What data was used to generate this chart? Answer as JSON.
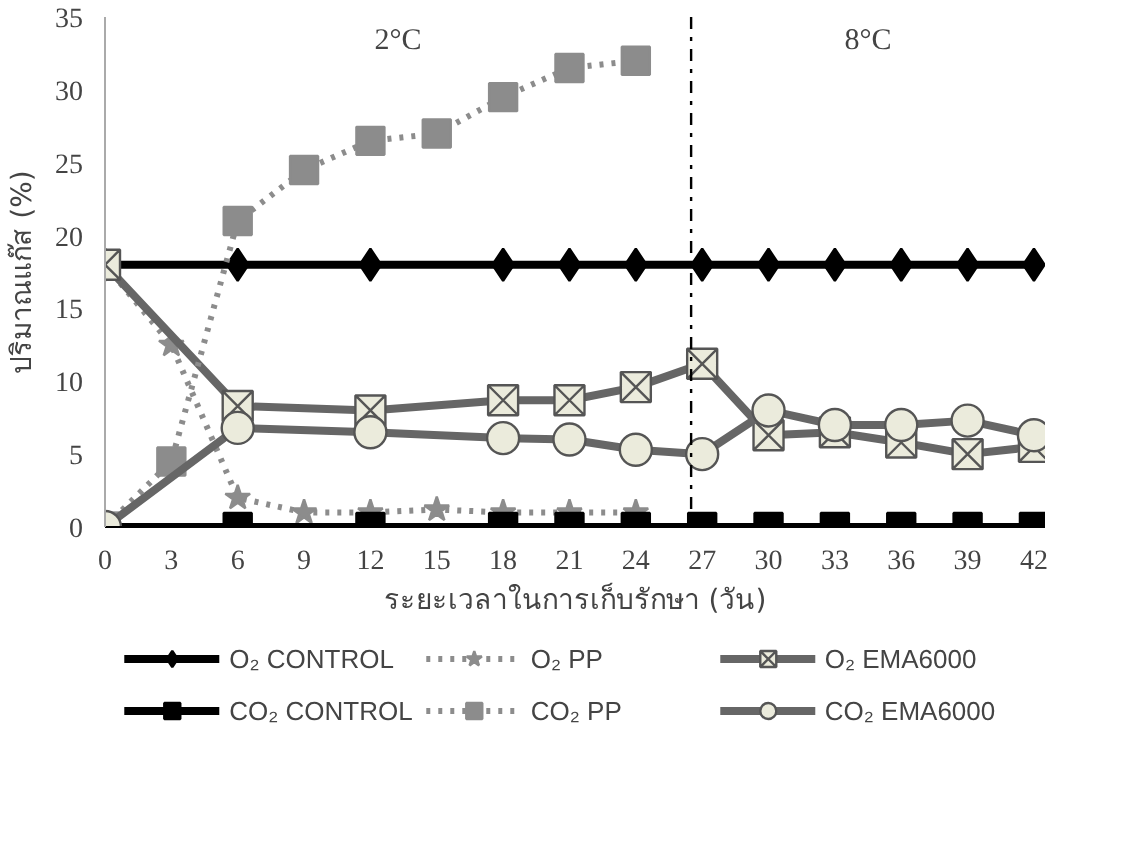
{
  "chart_data": {
    "type": "line",
    "xlabel": "ระยะเวลาในการเก็บรักษา (วัน)",
    "ylabel": "ปริมาณแก๊ส (%)",
    "xlim": [
      0,
      42.5
    ],
    "xticks": [
      0,
      3,
      6,
      9,
      12,
      15,
      18,
      21,
      24,
      27,
      30,
      33,
      36,
      39,
      42
    ],
    "ylim": [
      0,
      35
    ],
    "yticks": [
      0,
      5,
      10,
      15,
      20,
      25,
      30,
      35
    ],
    "grid": false,
    "legend": "bottom",
    "ref_lines": [
      {
        "axis": "x",
        "value": 26.5,
        "line_style": "dashdot",
        "color": "#000000"
      }
    ],
    "annotations": [
      "2°C",
      "8°C"
    ],
    "series": [
      {
        "name": "O₂ CONTROL",
        "color": "#000000",
        "marker": "diamond",
        "line_style": "solid",
        "x": [
          0,
          6,
          12,
          18,
          21,
          24,
          27,
          30,
          33,
          36,
          39,
          42
        ],
        "values": [
          18,
          18,
          18,
          18,
          18,
          18,
          18,
          18,
          18,
          18,
          18,
          18
        ]
      },
      {
        "name": "O₂ PP",
        "color": "#8c8c8c",
        "marker": "star",
        "line_style": "dotted",
        "x": [
          0,
          3,
          6,
          9,
          12,
          15,
          18,
          21,
          24
        ],
        "values": [
          18,
          12.5,
          2,
          1,
          1,
          1.2,
          1,
          1,
          1
        ]
      },
      {
        "name": "O₂ EMA6000",
        "color": "#666666",
        "marker": "cross",
        "line_style": "solid",
        "x": [
          0,
          6,
          12,
          18,
          21,
          24,
          27,
          30,
          33,
          36,
          39,
          42
        ],
        "values": [
          18,
          8.3,
          8,
          8.7,
          8.7,
          9.6,
          11.2,
          6.3,
          6.5,
          5.8,
          5,
          5.5
        ]
      },
      {
        "name": "CO₂ CONTROL",
        "color": "#000000",
        "marker": "square",
        "line_style": "solid",
        "x": [
          0,
          6,
          12,
          18,
          21,
          24,
          27,
          30,
          33,
          36,
          39,
          42
        ],
        "values": [
          0,
          0,
          0,
          0,
          0,
          0,
          0,
          0,
          0,
          0,
          0,
          0
        ]
      },
      {
        "name": "CO₂ PP",
        "color": "#8c8c8c",
        "marker": "square",
        "line_style": "dotted",
        "x": [
          0,
          3,
          6,
          9,
          12,
          15,
          18,
          21,
          24
        ],
        "values": [
          0,
          4.5,
          21,
          24.5,
          26.5,
          27,
          29.5,
          31.5,
          32
        ]
      },
      {
        "name": "CO₂ EMA6000",
        "color": "#666666",
        "marker": "circle",
        "line_style": "solid",
        "x": [
          0,
          6,
          12,
          18,
          21,
          24,
          27,
          30,
          33,
          36,
          39,
          42
        ],
        "values": [
          0,
          6.8,
          6.5,
          6.1,
          6,
          5.3,
          5,
          8,
          7,
          7,
          7.3,
          6.3
        ]
      }
    ]
  }
}
